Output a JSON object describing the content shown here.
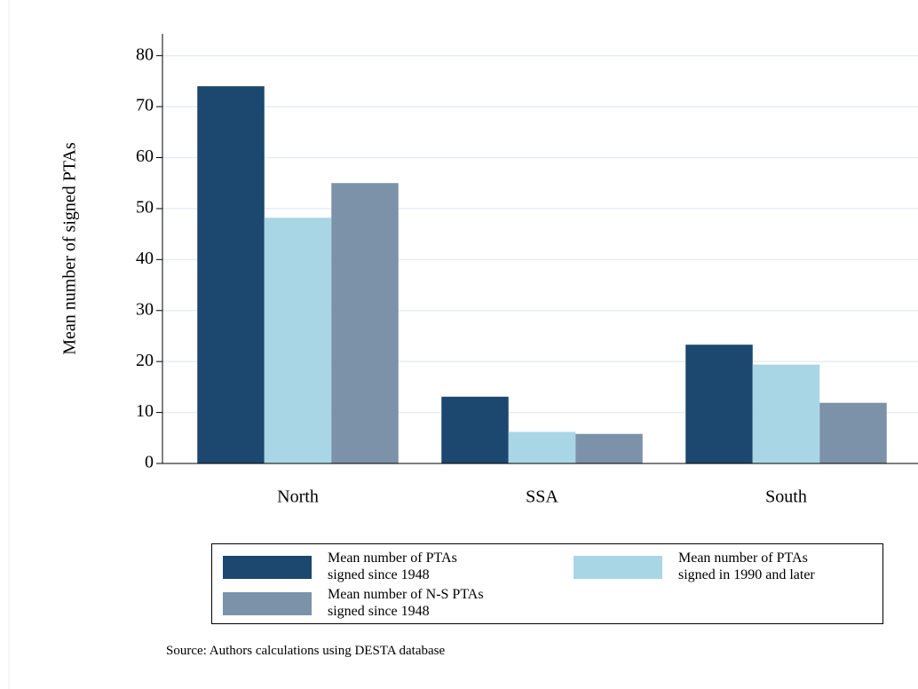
{
  "chart_data": {
    "type": "bar",
    "y_label": "Mean number of signed PTAs",
    "categories": [
      "North",
      "SSA",
      "South"
    ],
    "series": [
      {
        "name": "Mean number of PTAs\nsigned since 1948",
        "color": "#1c476f",
        "values": [
          74,
          13.1,
          23.3
        ]
      },
      {
        "name": "Mean number of PTAs\nsigned in 1990 and later",
        "color": "#a9d6e5",
        "values": [
          48.2,
          6.2,
          19.4
        ]
      },
      {
        "name": "Mean number of N-S PTAs\nsigned since 1948",
        "color": "#7b92a9",
        "values": [
          55,
          5.8,
          11.9
        ]
      }
    ],
    "ylim": [
      0,
      84.3
    ],
    "yticks": [
      0,
      10,
      20,
      30,
      40,
      50,
      60,
      70,
      80
    ],
    "grid": true,
    "note": "Source: Authors calculations using DESTA database"
  }
}
